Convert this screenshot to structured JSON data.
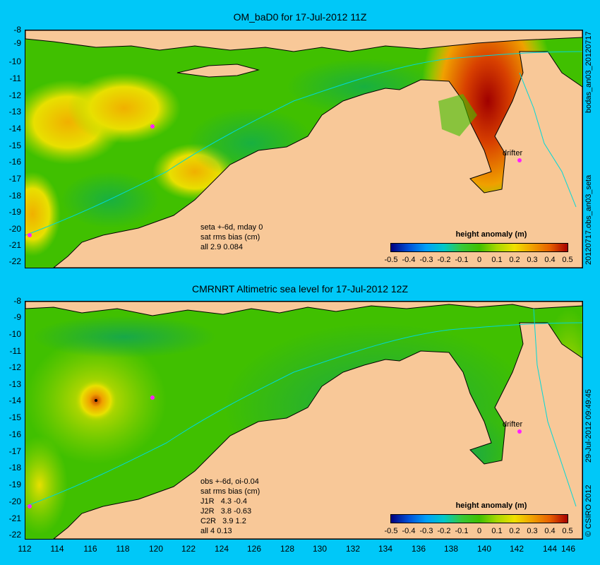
{
  "top": {
    "title": "OM_baD0 for 17-Jul-2012 11Z",
    "side_top": "bodas_an03_20120717",
    "side_bottom": "20120717.obs_an03_seta",
    "stats": "seta +-6d, mday 0\nsat rms bias (cm)\nall 2.9 0.084",
    "drifter": "drifter"
  },
  "bottom": {
    "title": "CMRNRT Altimetric sea level  for 17-Jul-2012 12Z",
    "side_top": "29-Jul-2012 09:49:45",
    "side_bottom": "© CSIRO 2012",
    "stats": "obs +-6d, oi-0.04\nsat rms bias (cm)\nJ1R   4.3 -0.4\nJ2R   3.8 -0.63\nC2R   3.9 1.2\nall 4 0.13",
    "drifter": "drifter"
  },
  "colorbar": {
    "title": "height anomaly (m)",
    "ticks": [
      "-0.5",
      "-0.4",
      "-0.3",
      "-0.2",
      "-0.1",
      "0",
      "0.1",
      "0.2",
      "0.3",
      "0.4",
      "0.5"
    ]
  },
  "y_ticks": [
    "-8",
    "-9",
    "-10",
    "-11",
    "-12",
    "-13",
    "-14",
    "-15",
    "-16",
    "-17",
    "-18",
    "-19",
    "-20",
    "-21",
    "-22"
  ],
  "x_ticks": [
    "112",
    "114",
    "116",
    "118",
    "120",
    "122",
    "124",
    "126",
    "128",
    "130",
    "132",
    "134",
    "136",
    "138",
    "140",
    "142",
    "144",
    "146"
  ],
  "colors": {
    "background": "#00c8f8",
    "land": "#f8c898",
    "ocean": "#40c000"
  }
}
